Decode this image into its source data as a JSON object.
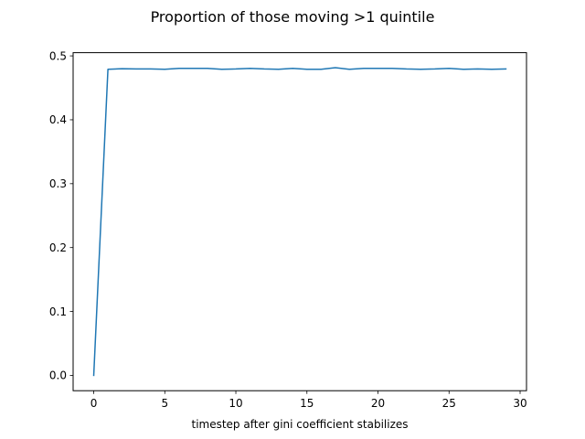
{
  "chart_data": {
    "type": "line",
    "title": "Proportion of those moving >1 quintile",
    "xlabel": "timestep after gini coefficient stabilizes",
    "ylabel": "",
    "xlim": [
      -1.45,
      30.45
    ],
    "ylim": [
      -0.024,
      0.505
    ],
    "xticks": [
      0,
      5,
      10,
      15,
      20,
      25,
      30
    ],
    "xtick_labels": [
      "0",
      "5",
      "10",
      "15",
      "20",
      "25",
      "30"
    ],
    "yticks": [
      0.0,
      0.1,
      0.2,
      0.3,
      0.4,
      0.5
    ],
    "ytick_labels": [
      "0.0",
      "0.1",
      "0.2",
      "0.3",
      "0.4",
      "0.5"
    ],
    "grid": false,
    "series": [
      {
        "color": "#1f77b4",
        "x": [
          0,
          1,
          2,
          3,
          4,
          5,
          6,
          7,
          8,
          9,
          10,
          11,
          12,
          13,
          14,
          15,
          16,
          17,
          18,
          19,
          20,
          21,
          22,
          23,
          24,
          25,
          26,
          27,
          28,
          29
        ],
        "y": [
          0.0,
          0.479,
          0.48,
          0.4795,
          0.4795,
          0.479,
          0.4805,
          0.4805,
          0.4805,
          0.479,
          0.4795,
          0.4805,
          0.4795,
          0.479,
          0.4805,
          0.479,
          0.479,
          0.4815,
          0.479,
          0.4805,
          0.4805,
          0.4805,
          0.4795,
          0.479,
          0.4795,
          0.4805,
          0.479,
          0.4795,
          0.479,
          0.4795
        ]
      }
    ]
  }
}
